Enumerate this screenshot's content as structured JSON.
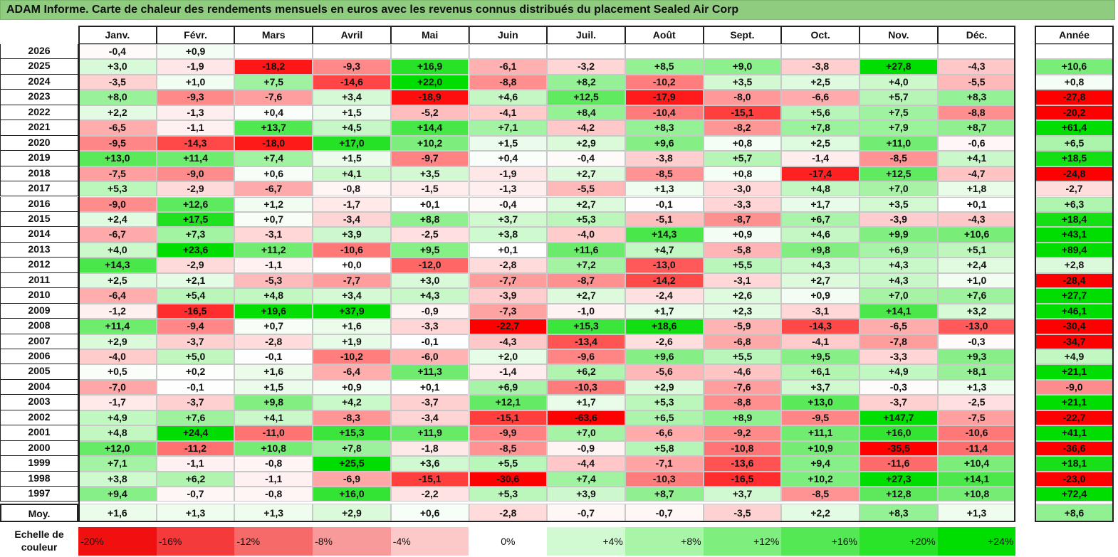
{
  "title": "ADAM Informe. Carte de chaleur des rendements mensuels en euros avec les revenus connus distribués du placement Sealed Air Corp",
  "chart_data": {
    "type": "heatmap",
    "columns": [
      "Janv.",
      "Févr.",
      "Mars",
      "Avril",
      "Mai",
      "Juin",
      "Juil.",
      "Août",
      "Sept.",
      "Oct.",
      "Nov.",
      "Déc."
    ],
    "year_header": "Année",
    "rows": [
      {
        "label": "2026",
        "values": [
          "-0,4",
          "+0,9",
          "",
          "",
          "",
          "",
          "",
          "",
          "",
          "",
          "",
          ""
        ],
        "annual": ""
      },
      {
        "label": "2025",
        "values": [
          "+3,0",
          "-1,9",
          "-18,2",
          "-9,3",
          "+16,9",
          "-6,1",
          "-3,2",
          "+8,5",
          "+9,0",
          "-3,8",
          "+27,8",
          "-4,3"
        ],
        "annual": "+10,6"
      },
      {
        "label": "2024",
        "values": [
          "-3,5",
          "+1,0",
          "+7,5",
          "-14,6",
          "+22,0",
          "-8,8",
          "+8,2",
          "-10,2",
          "+3,5",
          "+2,5",
          "+4,0",
          "-5,5"
        ],
        "annual": "+0,8"
      },
      {
        "label": "2023",
        "values": [
          "+8,0",
          "-9,3",
          "-7,6",
          "+3,4",
          "-18,9",
          "+4,6",
          "+12,5",
          "-17,9",
          "-8,0",
          "-6,6",
          "+5,7",
          "+8,3"
        ],
        "annual": "-27,8"
      },
      {
        "label": "2022",
        "values": [
          "+2,2",
          "-1,3",
          "+0,4",
          "+1,5",
          "-5,2",
          "-4,1",
          "+8,4",
          "-10,4",
          "-15,1",
          "+5,6",
          "+7,5",
          "-8,8"
        ],
        "annual": "-20,2"
      },
      {
        "label": "2021",
        "values": [
          "-6,5",
          "-1,1",
          "+13,7",
          "+4,5",
          "+14,4",
          "+7,1",
          "-4,2",
          "+8,3",
          "-8,2",
          "+7,8",
          "+7,9",
          "+8,7"
        ],
        "annual": "+61,4"
      },
      {
        "label": "2020",
        "values": [
          "-9,5",
          "-14,3",
          "-18,0",
          "+17,0",
          "+10,2",
          "+1,5",
          "+2,9",
          "+9,6",
          "+0,8",
          "+2,5",
          "+11,0",
          "-0,6"
        ],
        "annual": "+6,5"
      },
      {
        "label": "2019",
        "values": [
          "+13,0",
          "+11,4",
          "+7,4",
          "+1,5",
          "-9,7",
          "+0,4",
          "-0,4",
          "-3,8",
          "+5,7",
          "-1,4",
          "-8,5",
          "+4,1"
        ],
        "annual": "+18,5"
      },
      {
        "label": "2018",
        "values": [
          "-7,5",
          "-9,0",
          "+0,6",
          "+4,1",
          "+3,5",
          "-1,9",
          "+2,7",
          "-8,5",
          "+0,8",
          "-17,4",
          "+12,5",
          "-4,7"
        ],
        "annual": "-24,8"
      },
      {
        "label": "2017",
        "values": [
          "+5,3",
          "-2,9",
          "-6,7",
          "-0,8",
          "-1,5",
          "-1,3",
          "-5,5",
          "+1,3",
          "-3,0",
          "+4,8",
          "+7,0",
          "+1,8"
        ],
        "annual": "-2,7"
      },
      {
        "label": "2016",
        "values": [
          "-9,0",
          "+12,6",
          "+1,2",
          "-1,7",
          "+0,1",
          "-0,4",
          "+2,7",
          "-0,1",
          "-3,3",
          "+1,7",
          "+3,5",
          "+0,1"
        ],
        "annual": "+6,3"
      },
      {
        "label": "2015",
        "values": [
          "+2,4",
          "+17,5",
          "+0,7",
          "-3,4",
          "+8,8",
          "+3,7",
          "+5,3",
          "-5,1",
          "-8,7",
          "+6,7",
          "-3,9",
          "-4,3"
        ],
        "annual": "+18,4"
      },
      {
        "label": "2014",
        "values": [
          "-6,7",
          "+7,3",
          "-3,1",
          "+3,9",
          "-2,5",
          "+3,8",
          "-4,0",
          "+14,3",
          "+0,9",
          "+4,6",
          "+9,9",
          "+10,6"
        ],
        "annual": "+43,1"
      },
      {
        "label": "2013",
        "values": [
          "+4,0",
          "+23,6",
          "+11,2",
          "-10,6",
          "+9,5",
          "+0,1",
          "+11,6",
          "+4,7",
          "-5,8",
          "+9,8",
          "+6,9",
          "+5,1"
        ],
        "annual": "+89,4"
      },
      {
        "label": "2012",
        "values": [
          "+14,3",
          "-2,9",
          "-1,1",
          "+0,0",
          "-12,0",
          "-2,8",
          "+7,2",
          "-13,0",
          "+5,5",
          "+4,3",
          "+4,3",
          "+2,4"
        ],
        "annual": "+2,8"
      },
      {
        "label": "2011",
        "values": [
          "+2,5",
          "+2,1",
          "-5,3",
          "-7,7",
          "+3,0",
          "-7,7",
          "-8,7",
          "-14,2",
          "-3,1",
          "+2,7",
          "+4,3",
          "+1,0"
        ],
        "annual": "-28,4"
      },
      {
        "label": "2010",
        "values": [
          "-6,4",
          "+5,4",
          "+4,8",
          "+3,4",
          "+4,3",
          "-3,9",
          "+2,7",
          "-2,4",
          "+2,6",
          "+0,9",
          "+7,0",
          "+7,6"
        ],
        "annual": "+27,7"
      },
      {
        "label": "2009",
        "values": [
          "-1,2",
          "-16,5",
          "+19,6",
          "+37,9",
          "-0,9",
          "-7,3",
          "-1,0",
          "+1,7",
          "+2,3",
          "-3,1",
          "+14,1",
          "+3,2"
        ],
        "annual": "+46,1"
      },
      {
        "label": "2008",
        "values": [
          "+11,4",
          "-9,4",
          "+0,7",
          "+1,6",
          "-3,3",
          "-22,7",
          "+15,3",
          "+18,6",
          "-5,9",
          "-14,3",
          "-6,5",
          "-13,0"
        ],
        "annual": "-30,4"
      },
      {
        "label": "2007",
        "values": [
          "+2,9",
          "-3,7",
          "-2,8",
          "+1,9",
          "-0,1",
          "-4,3",
          "-13,4",
          "-2,6",
          "-6,8",
          "-4,1",
          "-7,8",
          "-0,3"
        ],
        "annual": "-34,7"
      },
      {
        "label": "2006",
        "values": [
          "-4,0",
          "+5,0",
          "-0,1",
          "-10,2",
          "-6,0",
          "+2,0",
          "-9,6",
          "+9,6",
          "+5,5",
          "+9,5",
          "-3,3",
          "+9,3"
        ],
        "annual": "+4,9"
      },
      {
        "label": "2005",
        "values": [
          "+0,5",
          "+0,2",
          "+1,6",
          "-6,4",
          "+11,3",
          "-1,4",
          "+6,2",
          "-5,6",
          "-4,6",
          "+6,1",
          "+4,9",
          "+8,1"
        ],
        "annual": "+21,1"
      },
      {
        "label": "2004",
        "values": [
          "-7,0",
          "-0,1",
          "+1,5",
          "+0,9",
          "+0,1",
          "+6,9",
          "-10,3",
          "+2,9",
          "-7,6",
          "+3,7",
          "-0,3",
          "+1,3"
        ],
        "annual": "-9,0"
      },
      {
        "label": "2003",
        "values": [
          "-1,7",
          "-3,7",
          "+9,8",
          "+4,2",
          "-3,7",
          "+12,1",
          "+1,7",
          "+5,3",
          "-8,8",
          "+13,0",
          "-3,7",
          "-2,5"
        ],
        "annual": "+21,1"
      },
      {
        "label": "2002",
        "values": [
          "+4,9",
          "+7,6",
          "+4,1",
          "-8,3",
          "-3,4",
          "-15,1",
          "-63,6",
          "+6,5",
          "+8,9",
          "-9,5",
          "+147,7",
          "-7,5"
        ],
        "annual": "-22,7"
      },
      {
        "label": "2001",
        "values": [
          "+4,8",
          "+24,4",
          "-11,0",
          "+15,3",
          "+11,9",
          "-9,9",
          "+7,0",
          "-6,6",
          "-9,2",
          "+11,1",
          "+16,0",
          "-10,6"
        ],
        "annual": "+41,1"
      },
      {
        "label": "2000",
        "values": [
          "+12,0",
          "-11,2",
          "+10,8",
          "+7,8",
          "-1,8",
          "-8,5",
          "-0,9",
          "+5,8",
          "-10,8",
          "+10,9",
          "-35,5",
          "-11,4"
        ],
        "annual": "-36,6"
      },
      {
        "label": "1999",
        "values": [
          "+7,1",
          "-1,1",
          "-0,8",
          "+25,5",
          "+3,6",
          "+5,5",
          "-4,4",
          "-7,1",
          "-13,6",
          "+9,4",
          "-11,6",
          "+10,4"
        ],
        "annual": "+18,1"
      },
      {
        "label": "1998",
        "values": [
          "+3,8",
          "+6,2",
          "-1,1",
          "-6,9",
          "-15,1",
          "-30,6",
          "+7,4",
          "-10,3",
          "-16,5",
          "+10,2",
          "+27,3",
          "+14,1"
        ],
        "annual": "-23,0"
      },
      {
        "label": "1997",
        "values": [
          "+9,4",
          "-0,7",
          "-0,8",
          "+16,0",
          "-2,2",
          "+5,3",
          "+3,9",
          "+8,7",
          "+3,7",
          "-8,5",
          "+12,8",
          "+10,8"
        ],
        "annual": "+72,4"
      }
    ],
    "average": {
      "label": "Moy.",
      "values": [
        "+1,6",
        "+1,3",
        "+1,3",
        "+2,9",
        "+0,6",
        "-2,8",
        "-0,7",
        "-0,7",
        "-3,5",
        "+2,2",
        "+8,3",
        "+1,3"
      ],
      "annual": "+8,6"
    },
    "scale_label": "Echelle de couleur",
    "scale": [
      "-20%",
      "-16%",
      "-12%",
      "-8%",
      "-4%",
      "0%",
      "+4%",
      "+8%",
      "+12%",
      "+16%",
      "+20%",
      "+24%"
    ],
    "scale_colors": [
      "#f01010",
      "#f43a3a",
      "#f66a6a",
      "#f99a9a",
      "#fcc8c8",
      "#ffffff",
      "#d2fad2",
      "#a8f5a8",
      "#7eef7e",
      "#54e954",
      "#2ae42a",
      "#00dd00"
    ],
    "colors": {
      "negative": "#f00000",
      "positive": "#00dd00",
      "neutral": "#ffffff",
      "title_bg": "#90cc80"
    }
  }
}
